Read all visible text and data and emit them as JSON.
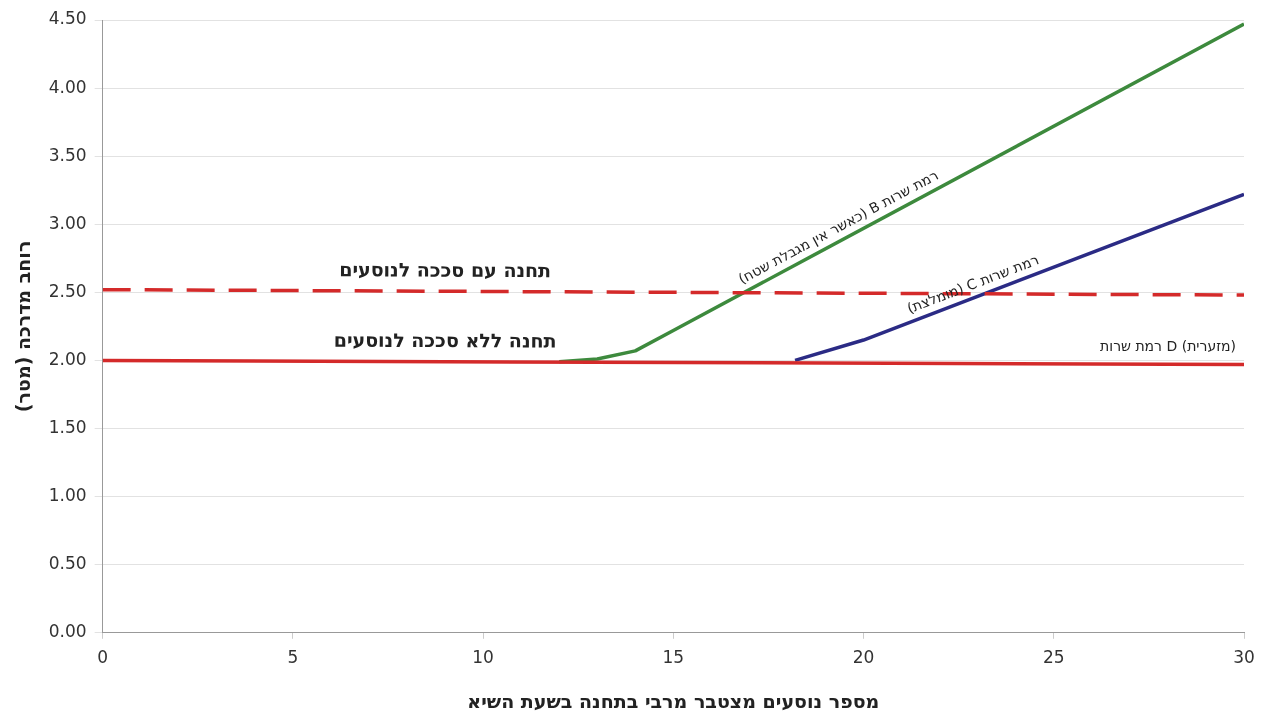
{
  "chart_data": {
    "type": "line",
    "xlabel": "מספר נוסעים מצטבר מרבי בתחנה בשעת השיא",
    "ylabel": "רוחב מדרכה (מטר)",
    "xlim": [
      0,
      30
    ],
    "xticks": [
      0,
      5,
      10,
      15,
      20,
      25,
      30
    ],
    "ylim": [
      0,
      4.5
    ],
    "yticks": [
      {
        "value": 0,
        "label": "0.00"
      },
      {
        "value": 0.5,
        "label": "0.50"
      },
      {
        "value": 1,
        "label": "1.00"
      },
      {
        "value": 1.5,
        "label": "1.50"
      },
      {
        "value": 2,
        "label": "2.00"
      },
      {
        "value": 2.5,
        "label": "2.50"
      },
      {
        "value": 3,
        "label": "3.00"
      },
      {
        "value": 3.5,
        "label": "3.50"
      },
      {
        "value": 4,
        "label": "4.00"
      },
      {
        "value": 4.5,
        "label": "4.50"
      }
    ],
    "grid": "y",
    "legend": false,
    "marker": "none",
    "series": [
      {
        "name": "תחנה עם סככה לנוסעים",
        "color": "#d42a2a",
        "line_style": "dashed",
        "x": [
          0,
          30
        ],
        "values": [
          2.52,
          2.48
        ]
      },
      {
        "name": "תחנה ללא סככה לנוסעים",
        "color": "#d42a2a",
        "line_style": "solid",
        "x": [
          0,
          30
        ],
        "values": [
          2.0,
          1.97
        ]
      },
      {
        "name": "רמת שרות B (כאשר אין מגבלת שטח)",
        "color": "#3d8a3d",
        "line_style": "solid",
        "x": [
          12,
          13,
          14,
          15,
          30
        ],
        "values": [
          1.99,
          2.01,
          2.07,
          2.22,
          4.47
        ]
      },
      {
        "name": "רמת שרות C (מומלצת)",
        "color": "#2b2b85",
        "line_style": "solid",
        "x": [
          18.2,
          20,
          30
        ],
        "values": [
          2.0,
          2.15,
          3.22
        ]
      }
    ],
    "annotations": [
      "רמת שרות D (מזערית)"
    ]
  }
}
